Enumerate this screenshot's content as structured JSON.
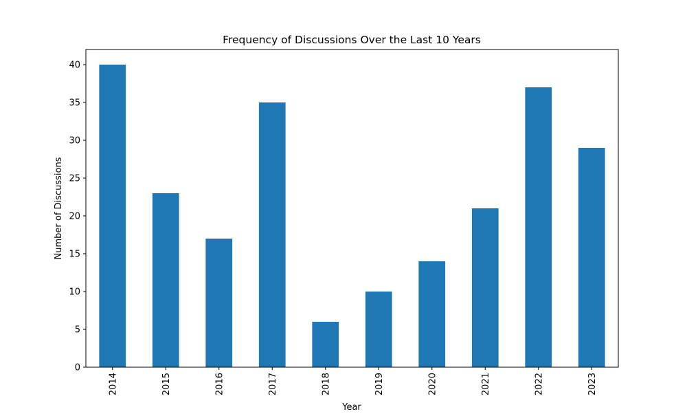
{
  "chart_data": {
    "type": "bar",
    "title": "Frequency of Discussions Over the Last 10 Years",
    "xlabel": "Year",
    "ylabel": "Number of Discussions",
    "categories": [
      "2014",
      "2015",
      "2016",
      "2017",
      "2018",
      "2019",
      "2020",
      "2021",
      "2022",
      "2023"
    ],
    "values": [
      40,
      23,
      17,
      35,
      6,
      10,
      14,
      21,
      37,
      29
    ],
    "ylim": [
      0,
      42
    ],
    "yticks": [
      0,
      5,
      10,
      15,
      20,
      25,
      30,
      35,
      40
    ],
    "xtick_rotation": "vertical",
    "grid": false,
    "legend": "none",
    "bar_color": "#1f77b4"
  }
}
